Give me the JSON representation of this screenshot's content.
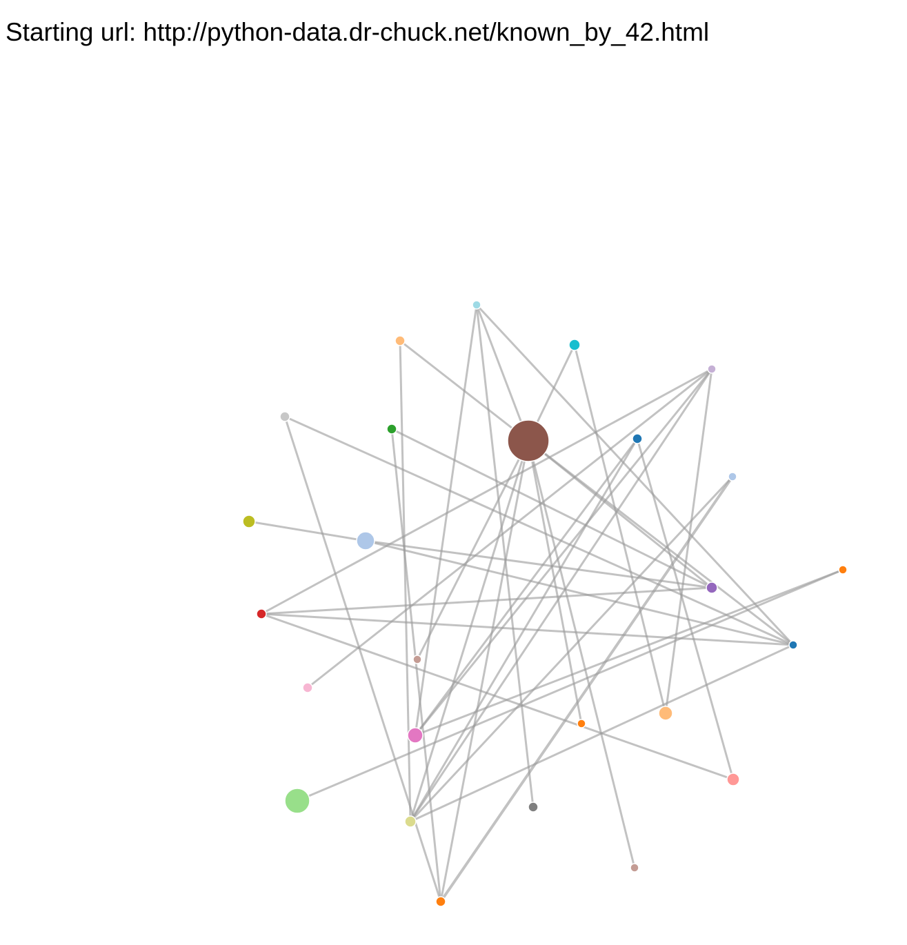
{
  "header": {
    "label": "Starting url:",
    "url": "http://python-data.dr-chuck.net/known_by_42.html"
  },
  "graph": {
    "nodes": [
      {
        "id": "n0",
        "color": "#8c564b"
      },
      {
        "id": "n1",
        "color": "#9edae5"
      },
      {
        "id": "n2",
        "color": "#ffbb78"
      },
      {
        "id": "n3",
        "color": "#17becf"
      },
      {
        "id": "n4",
        "color": "#c5b0d5"
      },
      {
        "id": "n5",
        "color": "#c7c7c7"
      },
      {
        "id": "n6",
        "color": "#2ca02c"
      },
      {
        "id": "n7",
        "color": "#1f77b4"
      },
      {
        "id": "n8",
        "color": "#aec7e8"
      },
      {
        "id": "n9",
        "color": "#bcbd22"
      },
      {
        "id": "n10",
        "color": "#aec7e8"
      },
      {
        "id": "n11",
        "color": "#ff7f0e"
      },
      {
        "id": "n12",
        "color": "#9467bd"
      },
      {
        "id": "n13",
        "color": "#d62728"
      },
      {
        "id": "n14",
        "color": "#1f77b4"
      },
      {
        "id": "n15",
        "color": "#c49c94"
      },
      {
        "id": "n16",
        "color": "#f7b6d2"
      },
      {
        "id": "n17",
        "color": "#ffbb78"
      },
      {
        "id": "n18",
        "color": "#ff7f0e"
      },
      {
        "id": "n19",
        "color": "#e377c2"
      },
      {
        "id": "n20",
        "color": "#ff9896"
      },
      {
        "id": "n21",
        "color": "#98df8a"
      },
      {
        "id": "n22",
        "color": "#7f7f7f"
      },
      {
        "id": "n23",
        "color": "#dbdb8d"
      },
      {
        "id": "n24",
        "color": "#c49c94"
      },
      {
        "id": "n25",
        "color": "#ff7f0e"
      }
    ],
    "links": [
      [
        "n1",
        "n0"
      ],
      [
        "n1",
        "n19"
      ],
      [
        "n1",
        "n14"
      ],
      [
        "n1",
        "n22"
      ],
      [
        "n2",
        "n0"
      ],
      [
        "n2",
        "n23"
      ],
      [
        "n3",
        "n0"
      ],
      [
        "n3",
        "n17"
      ],
      [
        "n4",
        "n13"
      ],
      [
        "n4",
        "n16"
      ],
      [
        "n4",
        "n19"
      ],
      [
        "n4",
        "n23"
      ],
      [
        "n4",
        "n17"
      ],
      [
        "n5",
        "n14"
      ],
      [
        "n5",
        "n25"
      ],
      [
        "n6",
        "n12"
      ],
      [
        "n6",
        "n25"
      ],
      [
        "n7",
        "n23"
      ],
      [
        "n7",
        "n19"
      ],
      [
        "n7",
        "n20"
      ],
      [
        "n8",
        "n25"
      ],
      [
        "n8",
        "n23"
      ],
      [
        "n9",
        "n10"
      ],
      [
        "n10",
        "n12"
      ],
      [
        "n10",
        "n14"
      ],
      [
        "n11",
        "n19"
      ],
      [
        "n11",
        "n21"
      ],
      [
        "n13",
        "n12"
      ],
      [
        "n13",
        "n14"
      ],
      [
        "n13",
        "n20"
      ],
      [
        "n0",
        "n14"
      ],
      [
        "n0",
        "n18"
      ],
      [
        "n0",
        "n25"
      ],
      [
        "n0",
        "n23"
      ],
      [
        "n0",
        "n24"
      ],
      [
        "n15",
        "n0"
      ],
      [
        "n14",
        "n23"
      ],
      [
        "n12",
        "n0"
      ]
    ]
  }
}
